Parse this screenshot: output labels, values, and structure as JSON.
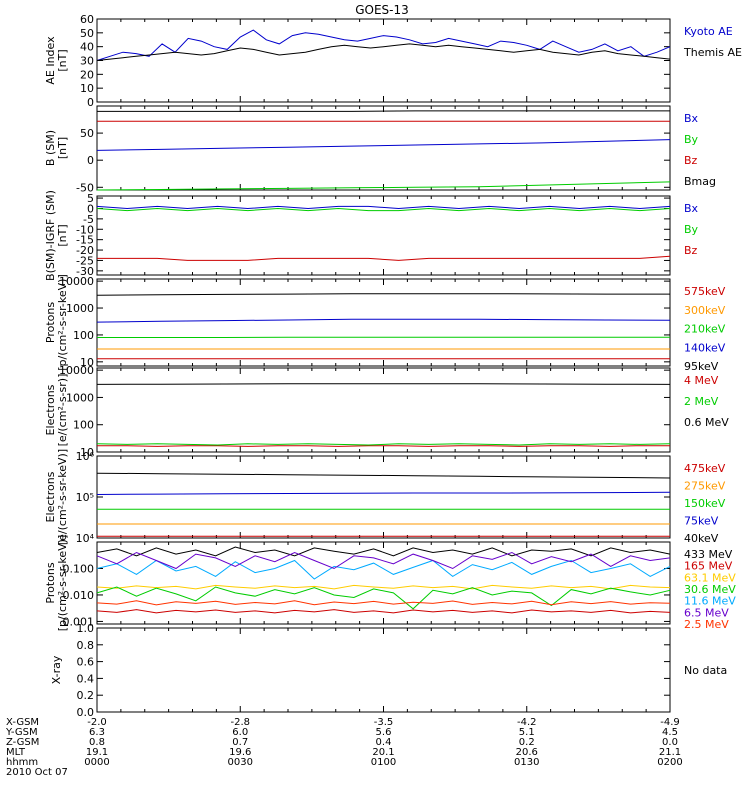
{
  "title": "GOES-13",
  "chart_data": [
    {
      "type": "line",
      "ylabel": [
        "AE Index",
        "[nT]"
      ],
      "ylim": [
        0,
        60
      ],
      "yticks": [
        0,
        10,
        20,
        30,
        40,
        50,
        60
      ],
      "series": [
        {
          "name": "Kyoto AE",
          "color": "#0000cc",
          "values": [
            30,
            33,
            36,
            35,
            33,
            42,
            36,
            46,
            44,
            40,
            38,
            47,
            52,
            45,
            42,
            48,
            50,
            49,
            47,
            45,
            44,
            46,
            48,
            47,
            45,
            42,
            43,
            46,
            44,
            42,
            40,
            44,
            43,
            41,
            38,
            44,
            40,
            36,
            38,
            42,
            37,
            40,
            33,
            36,
            40
          ]
        },
        {
          "name": "Themis AE",
          "color": "#000000",
          "values": [
            30,
            31,
            32,
            33,
            34,
            35,
            36,
            35,
            34,
            35,
            37,
            39,
            38,
            36,
            34,
            35,
            36,
            38,
            40,
            41,
            40,
            39,
            40,
            41,
            42,
            41,
            40,
            41,
            40,
            39,
            38,
            37,
            36,
            37,
            38,
            36,
            35,
            34,
            36,
            37,
            35,
            34,
            33,
            32,
            31
          ]
        }
      ]
    },
    {
      "type": "line",
      "ylabel": [
        "B (SM)",
        "[nT]"
      ],
      "ylim": [
        -55,
        100
      ],
      "yticks": [
        -50,
        0,
        50
      ],
      "series": [
        {
          "name": "Bx",
          "color": "#0000cc",
          "values": [
            18,
            20,
            22,
            24,
            26,
            28,
            30,
            32,
            35,
            38
          ]
        },
        {
          "name": "By",
          "color": "#00cc00",
          "values": [
            -55,
            -54,
            -53,
            -52,
            -51,
            -50,
            -49,
            -46,
            -43,
            -40
          ]
        },
        {
          "name": "Bz",
          "color": "#cc0000",
          "values": [
            72,
            72,
            72,
            72,
            72,
            72,
            72,
            72,
            72,
            72
          ]
        },
        {
          "name": "Bmag",
          "color": "#000000",
          "values": [
            90,
            90,
            90,
            90,
            90,
            91,
            91,
            91,
            91,
            91
          ]
        }
      ]
    },
    {
      "type": "line",
      "ylabel": [
        "B(SM)-IGRF (SM)",
        "[nT]"
      ],
      "ylim": [
        -32,
        6
      ],
      "yticks": [
        -30,
        -25,
        -20,
        -15,
        -10,
        -5,
        0,
        5
      ],
      "series": [
        {
          "name": "Bx",
          "color": "#0000cc",
          "values": [
            1,
            0,
            1,
            0,
            1,
            0,
            1,
            0,
            1,
            1,
            0,
            1,
            0,
            1,
            0,
            1,
            0,
            1,
            0,
            1
          ]
        },
        {
          "name": "By",
          "color": "#00cc00",
          "values": [
            0,
            -1,
            0,
            -1,
            0,
            -1,
            0,
            -1,
            0,
            -1,
            -1,
            0,
            -1,
            0,
            -1,
            0,
            -1,
            0,
            -1,
            0
          ]
        },
        {
          "name": "Bz",
          "color": "#cc0000",
          "values": [
            -24,
            -24,
            -24,
            -25,
            -25,
            -25,
            -24,
            -24,
            -24,
            -24,
            -25,
            -24,
            -24,
            -24,
            -24,
            -24,
            -24,
            -24,
            -24,
            -23
          ]
        }
      ]
    },
    {
      "type": "line",
      "log": true,
      "ylabel": [
        "Protons",
        "[p/(cm²-s-sr-keV)]"
      ],
      "ylim": [
        7,
        12000
      ],
      "ytick_values": [
        10,
        100,
        1000,
        10000
      ],
      "ytick_labels": [
        "10",
        "100",
        "1000",
        "10000"
      ],
      "series": [
        {
          "name": "575keV",
          "color": "#cc0000",
          "values": [
            13,
            13,
            13,
            13,
            13,
            13,
            13,
            13,
            13,
            13
          ]
        },
        {
          "name": "300keV",
          "color": "#ff9900",
          "values": [
            30,
            30,
            30,
            30,
            30,
            30,
            30,
            30,
            30,
            30
          ]
        },
        {
          "name": "210keV",
          "color": "#00cc00",
          "values": [
            80,
            80,
            80,
            82,
            82,
            82,
            82,
            82,
            82,
            82
          ]
        },
        {
          "name": "140keV",
          "color": "#0000cc",
          "values": [
            300,
            320,
            340,
            360,
            380,
            380,
            380,
            370,
            360,
            350
          ]
        },
        {
          "name": "95keV",
          "color": "#000000",
          "values": [
            3000,
            3100,
            3200,
            3300,
            3400,
            3400,
            3400,
            3350,
            3300,
            3300
          ]
        }
      ]
    },
    {
      "type": "line",
      "log": true,
      "ylabel": [
        "Electrons",
        "[e/(cm²-s-sr)]"
      ],
      "ylim": [
        10,
        12000
      ],
      "ytick_values": [
        10,
        100,
        1000,
        10000
      ],
      "ytick_labels": [
        "10",
        "100",
        "1000",
        "10000"
      ],
      "series": [
        {
          "name": "4 MeV",
          "color": "#cc0000",
          "values": [
            17,
            17,
            16,
            17,
            17,
            16,
            17,
            17,
            16,
            17,
            17,
            16,
            17,
            17,
            16,
            17,
            17,
            16,
            17,
            17
          ]
        },
        {
          "name": "2 MeV",
          "color": "#00cc00",
          "values": [
            20,
            19,
            20,
            19,
            18,
            20,
            19,
            20,
            19,
            18,
            20,
            19,
            20,
            19,
            18,
            20,
            19,
            20,
            19,
            20
          ]
        },
        {
          "name": "0.6 MeV",
          "color": "#000000",
          "values": [
            3000,
            3050,
            3100,
            3150,
            3200,
            3200,
            3150,
            3100,
            3050,
            3000
          ]
        }
      ]
    },
    {
      "type": "line",
      "log": true,
      "ylabel": [
        "Electrons",
        "[e/(cm²-s-sr-keV)]"
      ],
      "ylim": [
        10000,
        1000000
      ],
      "ytick_values": [
        10000,
        100000,
        1000000
      ],
      "ytick_labels": [
        "10⁴",
        "10⁵",
        "10⁶"
      ],
      "series": [
        {
          "name": "475keV",
          "color": "#cc0000",
          "values": [
            11000,
            11000,
            11000,
            11000,
            11000,
            11000,
            11000,
            11000,
            11000,
            11000
          ]
        },
        {
          "name": "275keV",
          "color": "#ff9900",
          "values": [
            22000,
            22000,
            22000,
            22000,
            22000,
            22000,
            22000,
            22000,
            22000,
            22000
          ]
        },
        {
          "name": "150keV",
          "color": "#00cc00",
          "values": [
            50000,
            50000,
            50000,
            50000,
            50000,
            50000,
            50000,
            50000,
            50000,
            50000
          ]
        },
        {
          "name": "75keV",
          "color": "#0000cc",
          "values": [
            115000,
            118000,
            120000,
            122000,
            124000,
            125000,
            125000,
            126000,
            128000,
            130000
          ]
        },
        {
          "name": "40keV",
          "color": "#000000",
          "values": [
            380000,
            370000,
            360000,
            350000,
            340000,
            330000,
            320000,
            310000,
            300000,
            290000
          ]
        }
      ]
    },
    {
      "type": "line",
      "log": true,
      "ylabel": [
        "Protons",
        "[p/(cm²-s-sr-keV)]"
      ],
      "ylim": [
        0.0008,
        1.0
      ],
      "ytick_values": [
        0.001,
        0.01,
        0.1
      ],
      "ytick_labels": [
        "0.001",
        "0.010",
        "0.100"
      ],
      "series": [
        {
          "name": "433 MeV",
          "color": "#000000",
          "values": [
            0.4,
            0.55,
            0.3,
            0.6,
            0.35,
            0.5,
            0.3,
            0.65,
            0.4,
            0.5,
            0.3,
            0.6,
            0.45,
            0.35,
            0.55,
            0.3,
            0.6,
            0.4,
            0.5,
            0.35,
            0.6,
            0.3,
            0.5,
            0.45,
            0.55,
            0.3,
            0.6,
            0.4,
            0.5,
            0.35
          ]
        },
        {
          "name": "165 MeV",
          "color": "#cc0000",
          "values": [
            0.0025,
            0.0022,
            0.0028,
            0.0021,
            0.0026,
            0.0023,
            0.0027,
            0.0022,
            0.0025,
            0.0021,
            0.0026,
            0.0023,
            0.0028,
            0.0022,
            0.0025,
            0.0021,
            0.0027,
            0.0023,
            0.0026,
            0.0022,
            0.0025,
            0.0021,
            0.0027,
            0.0023,
            0.0025,
            0.0022,
            0.0026,
            0.0021,
            0.0024,
            0.0022
          ]
        },
        {
          "name": "63.1 MeV",
          "color": "#ffcc00",
          "values": [
            0.02,
            0.018,
            0.022,
            0.019,
            0.021,
            0.017,
            0.023,
            0.02,
            0.018,
            0.022,
            0.019,
            0.021,
            0.017,
            0.023,
            0.02,
            0.018,
            0.022,
            0.019,
            0.021,
            0.017,
            0.023,
            0.02,
            0.018,
            0.022,
            0.019,
            0.021,
            0.017,
            0.023,
            0.02,
            0.019
          ]
        },
        {
          "name": "30.6 MeV",
          "color": "#00cc00",
          "values": [
            0.012,
            0.02,
            0.009,
            0.018,
            0.011,
            0.006,
            0.02,
            0.012,
            0.009,
            0.016,
            0.011,
            0.019,
            0.01,
            0.008,
            0.017,
            0.012,
            0.003,
            0.015,
            0.011,
            0.019,
            0.01,
            0.014,
            0.012,
            0.004,
            0.016,
            0.011,
            0.018,
            0.013,
            0.01,
            0.015
          ]
        },
        {
          "name": "11.6 MeV",
          "color": "#00aaff",
          "values": [
            0.1,
            0.15,
            0.06,
            0.2,
            0.08,
            0.12,
            0.05,
            0.18,
            0.07,
            0.1,
            0.2,
            0.04,
            0.12,
            0.09,
            0.16,
            0.06,
            0.11,
            0.2,
            0.05,
            0.14,
            0.09,
            0.17,
            0.06,
            0.12,
            0.2,
            0.07,
            0.1,
            0.15,
            0.05,
            0.12
          ]
        },
        {
          "name": "6.5 MeV",
          "color": "#6600cc",
          "values": [
            0.3,
            0.15,
            0.4,
            0.2,
            0.1,
            0.35,
            0.25,
            0.12,
            0.3,
            0.18,
            0.4,
            0.2,
            0.1,
            0.3,
            0.25,
            0.15,
            0.35,
            0.2,
            0.1,
            0.3,
            0.22,
            0.4,
            0.15,
            0.28,
            0.18,
            0.35,
            0.12,
            0.3,
            0.2,
            0.25
          ]
        },
        {
          "name": "2.5 MeV",
          "color": "#ff3300",
          "values": [
            0.005,
            0.0045,
            0.006,
            0.0042,
            0.0055,
            0.0048,
            0.0058,
            0.0044,
            0.0052,
            0.0046,
            0.006,
            0.0043,
            0.0054,
            0.0047,
            0.0057,
            0.0045,
            0.0053,
            0.0048,
            0.0059,
            0.0044,
            0.0052,
            0.0046,
            0.0058,
            0.0043,
            0.0055,
            0.0047,
            0.0056,
            0.0045,
            0.0051,
            0.0049
          ]
        }
      ]
    },
    {
      "type": "line",
      "ylabel": [
        "X-ray"
      ],
      "ylim": [
        0,
        1.0
      ],
      "yticks": [
        0,
        0.2,
        0.4,
        0.6,
        0.8,
        1.0
      ],
      "ytick_labels": [
        "0.0",
        "0.2",
        "0.4",
        "0.6",
        "0.8",
        "1.0"
      ],
      "nodata": "No data",
      "series": []
    }
  ],
  "x_axis": {
    "rows": [
      {
        "label": "X-GSM",
        "values": [
          "-2.0",
          "-2.8",
          "-3.5",
          "-4.2",
          "-4.9"
        ]
      },
      {
        "label": "Y-GSM",
        "values": [
          "6.3",
          "6.0",
          "5.6",
          "5.1",
          "4.5"
        ]
      },
      {
        "label": "Z-GSM",
        "values": [
          "0.8",
          "0.7",
          "0.4",
          "0.2",
          "0.0"
        ]
      },
      {
        "label": "MLT",
        "values": [
          "19.1",
          "19.6",
          "20.1",
          "20.6",
          "21.1"
        ]
      },
      {
        "label": "hhmm",
        "values": [
          "0000",
          "0030",
          "0100",
          "0130",
          "0200"
        ]
      }
    ],
    "date": "2010 Oct 07"
  }
}
